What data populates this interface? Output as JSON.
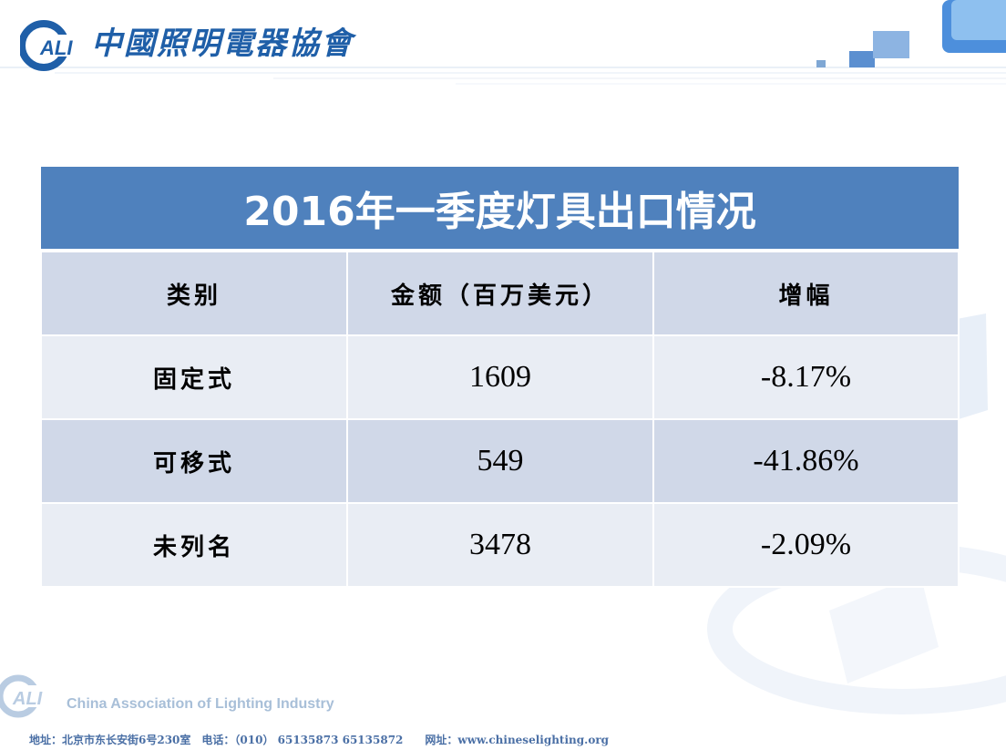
{
  "header": {
    "logo_text": "ALI",
    "org_name": "中國照明電器協會"
  },
  "table": {
    "title": "2016年一季度灯具出口情况",
    "columns": [
      "类别",
      "金额（百万美元）",
      "增幅"
    ],
    "rows": [
      {
        "category": "固定式",
        "amount": "1609",
        "growth": "-8.17%"
      },
      {
        "category": "可移式",
        "amount": "549",
        "growth": "-41.86%"
      },
      {
        "category": "未列名",
        "amount": "3478",
        "growth": "-2.09%"
      }
    ]
  },
  "footer": {
    "logo_text": "ALI",
    "english_name": "China Association of Lighting Industry",
    "address_line": "地址：北京市东长安街6号230室　电话：（010） 65135873 65135872　　网址：www.chineselighting.org"
  },
  "colors": {
    "header_blue": "#4f81bd",
    "row_dark": "#d0d8e8",
    "row_light": "#e9edf4",
    "brand_blue": "#1f5fa8"
  }
}
